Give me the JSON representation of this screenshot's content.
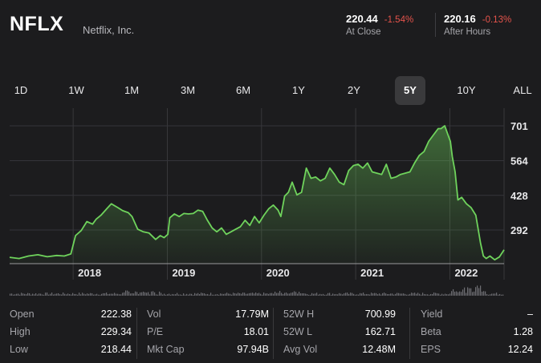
{
  "header": {
    "ticker": "NFLX",
    "company": "Netflix, Inc.",
    "close_price": "220.44",
    "close_change": "-1.54%",
    "close_label": "At Close",
    "after_price": "220.16",
    "after_change": "-0.13%",
    "after_label": "After Hours"
  },
  "ranges": [
    "1D",
    "1W",
    "1M",
    "3M",
    "6M",
    "1Y",
    "2Y",
    "5Y",
    "10Y",
    "ALL"
  ],
  "selected_range": "5Y",
  "colors": {
    "line": "#6fd35c",
    "negative": "#e5534b",
    "background": "#1c1c1e",
    "selected_tab": "#3a3a3c"
  },
  "chart_data": {
    "type": "area",
    "x_tick_labels": [
      "2018",
      "2019",
      "2020",
      "2021",
      "2022"
    ],
    "y_tick_labels": [
      "701",
      "564",
      "428",
      "292"
    ],
    "ylim": [
      160,
      745
    ],
    "grid": true,
    "series": [
      {
        "x": [
          2017.3,
          2017.4,
          2017.5,
          2017.6,
          2017.7,
          2017.8,
          2017.88,
          2017.95,
          2018.0,
          2018.06,
          2018.12,
          2018.18,
          2018.22,
          2018.27,
          2018.33,
          2018.38,
          2018.45,
          2018.5,
          2018.56,
          2018.6,
          2018.66,
          2018.72,
          2018.78,
          2018.85,
          2018.9,
          2018.94,
          2018.98,
          2019.0,
          2019.05,
          2019.1,
          2019.15,
          2019.2,
          2019.25,
          2019.3,
          2019.35,
          2019.4,
          2019.45,
          2019.5,
          2019.55,
          2019.6,
          2019.65,
          2019.7,
          2019.75,
          2019.8,
          2019.85,
          2019.9,
          2019.95,
          2020.0,
          2020.05,
          2020.1,
          2020.15,
          2020.18,
          2020.22,
          2020.26,
          2020.3,
          2020.35,
          2020.4,
          2020.45,
          2020.5,
          2020.55,
          2020.6,
          2020.65,
          2020.7,
          2020.75,
          2020.8,
          2020.85,
          2020.9,
          2020.95,
          2021.0,
          2021.05,
          2021.1,
          2021.15,
          2021.2,
          2021.25,
          2021.3,
          2021.35,
          2021.4,
          2021.45,
          2021.5,
          2021.55,
          2021.6,
          2021.65,
          2021.7,
          2021.75,
          2021.8,
          2021.85,
          2021.88,
          2021.92,
          2021.95,
          2021.98,
          2022.0,
          2022.03,
          2022.06,
          2022.1,
          2022.15,
          2022.2,
          2022.25,
          2022.3,
          2022.33,
          2022.36,
          2022.4,
          2022.45,
          2022.5,
          2022.55
        ],
        "y": [
          185,
          180,
          190,
          195,
          187,
          192,
          190,
          198,
          270,
          290,
          325,
          315,
          335,
          350,
          375,
          395,
          380,
          368,
          360,
          345,
          295,
          285,
          280,
          255,
          270,
          262,
          275,
          340,
          355,
          345,
          357,
          355,
          357,
          370,
          365,
          330,
          300,
          285,
          300,
          275,
          285,
          295,
          305,
          330,
          310,
          345,
          320,
          350,
          375,
          390,
          370,
          345,
          425,
          440,
          480,
          430,
          440,
          535,
          495,
          500,
          485,
          495,
          535,
          510,
          480,
          470,
          525,
          545,
          550,
          535,
          555,
          520,
          515,
          510,
          550,
          495,
          500,
          510,
          515,
          520,
          555,
          585,
          600,
          640,
          665,
          690,
          690,
          701,
          670,
          640,
          580,
          520,
          410,
          420,
          395,
          380,
          350,
          240,
          190,
          180,
          190,
          175,
          186,
          214
        ]
      }
    ],
    "volume_bars": true
  },
  "stats": {
    "col1": [
      {
        "label": "Open",
        "value": "222.38"
      },
      {
        "label": "High",
        "value": "229.34"
      },
      {
        "label": "Low",
        "value": "218.44"
      }
    ],
    "col2": [
      {
        "label": "Vol",
        "value": "17.79M"
      },
      {
        "label": "P/E",
        "value": "18.01"
      },
      {
        "label": "Mkt Cap",
        "value": "97.94B"
      }
    ],
    "col3": [
      {
        "label": "52W H",
        "value": "700.99"
      },
      {
        "label": "52W L",
        "value": "162.71"
      },
      {
        "label": "Avg Vol",
        "value": "12.48M"
      }
    ],
    "col4": [
      {
        "label": "Yield",
        "value": "–"
      },
      {
        "label": "Beta",
        "value": "1.28"
      },
      {
        "label": "EPS",
        "value": "12.24"
      }
    ]
  }
}
